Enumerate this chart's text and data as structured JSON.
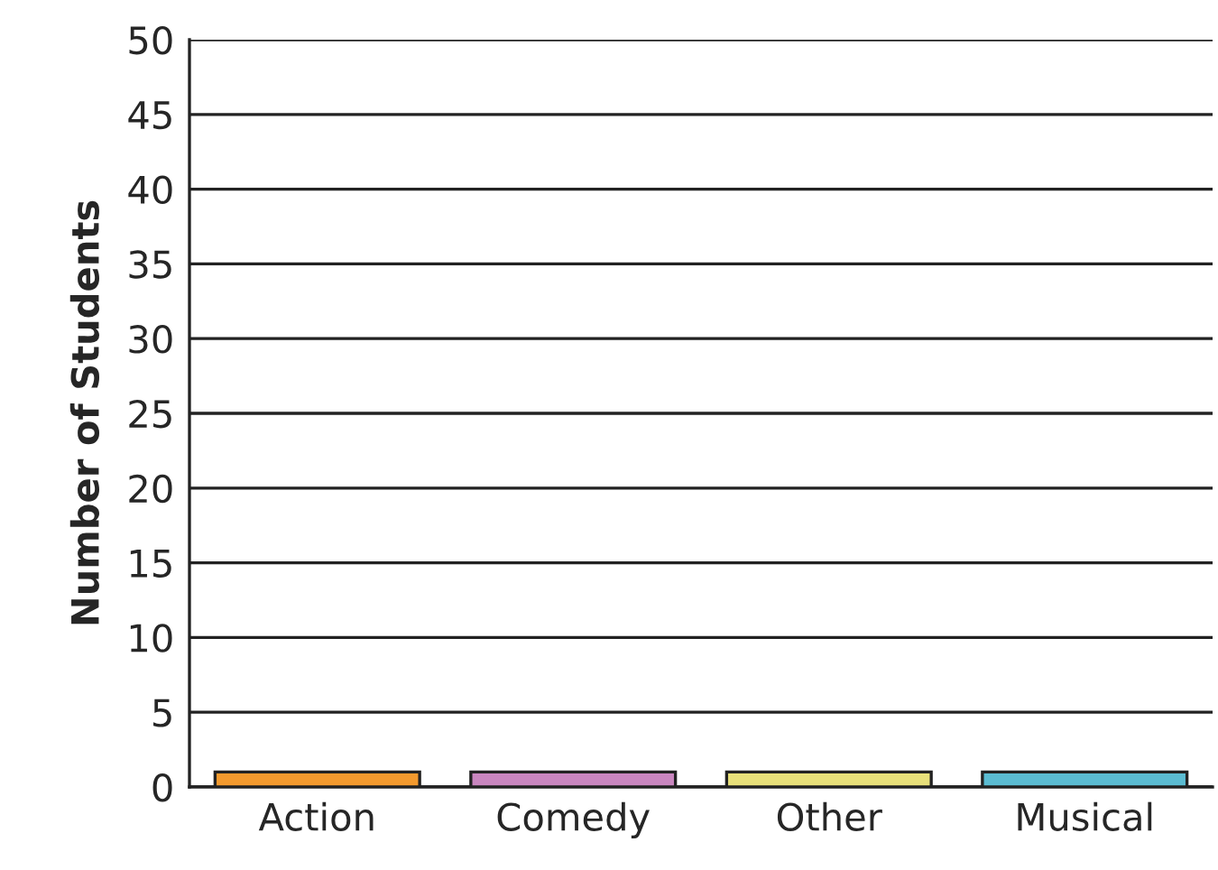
{
  "chart_data": {
    "type": "bar",
    "ylabel": "Number of Students",
    "categories": [
      "Action",
      "Comedy",
      "Other",
      "Musical"
    ],
    "values": [
      1,
      1,
      1,
      1
    ],
    "colors": [
      "#f39a2e",
      "#c986bf",
      "#e8e07a",
      "#5bbcd2"
    ],
    "ylim": [
      0,
      50
    ],
    "yticks": [
      0,
      5,
      10,
      15,
      20,
      25,
      30,
      35,
      40,
      45,
      50
    ],
    "grid": "y"
  }
}
